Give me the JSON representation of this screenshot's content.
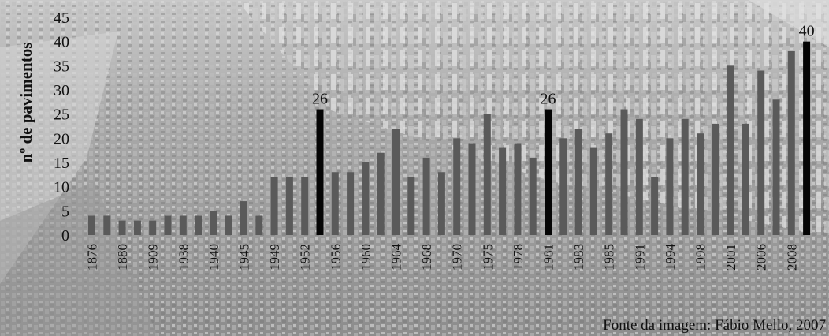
{
  "chart_data": {
    "type": "bar",
    "title": "",
    "xlabel": "",
    "ylabel": "nº de pavimentos",
    "ylim": [
      0,
      45
    ],
    "yticks": [
      "0",
      "5",
      "10",
      "15",
      "20",
      "25",
      "30",
      "35",
      "40",
      "45"
    ],
    "categories": [
      "1876",
      "",
      "1880",
      "",
      "1909",
      "",
      "1938",
      "",
      "1940",
      "",
      "1945",
      "",
      "1949",
      "",
      "1952",
      "",
      "1956",
      "",
      "1960",
      "",
      "1964",
      "",
      "1968",
      "",
      "1970",
      "",
      "1975",
      "",
      "1978",
      "",
      "1981",
      "",
      "1983",
      "",
      "1985",
      "",
      "1991",
      "",
      "1994",
      "",
      "1998",
      "",
      "2001",
      "",
      "2006",
      "",
      "2008",
      ""
    ],
    "values": [
      4,
      4,
      3,
      3,
      3,
      4,
      4,
      4,
      5,
      4,
      7,
      4,
      12,
      12,
      12,
      26,
      13,
      13,
      15,
      17,
      22,
      12,
      16,
      13,
      20,
      19,
      25,
      18,
      19,
      16,
      26,
      20,
      22,
      18,
      21,
      26,
      24,
      12,
      20,
      24,
      21,
      23,
      35,
      23,
      34,
      28,
      38,
      40
    ],
    "highlighted": [
      15,
      30,
      47
    ],
    "data_labels": [
      {
        "index": 15,
        "text": "26"
      },
      {
        "index": 30,
        "text": "26"
      },
      {
        "index": 47,
        "text": "40"
      }
    ],
    "colors": {
      "bar": "#5a5a5a",
      "highlight": "#050505"
    },
    "grid": false,
    "legend": "none"
  },
  "credit": "Fonte da imagem: Fábio Mello, 2007"
}
